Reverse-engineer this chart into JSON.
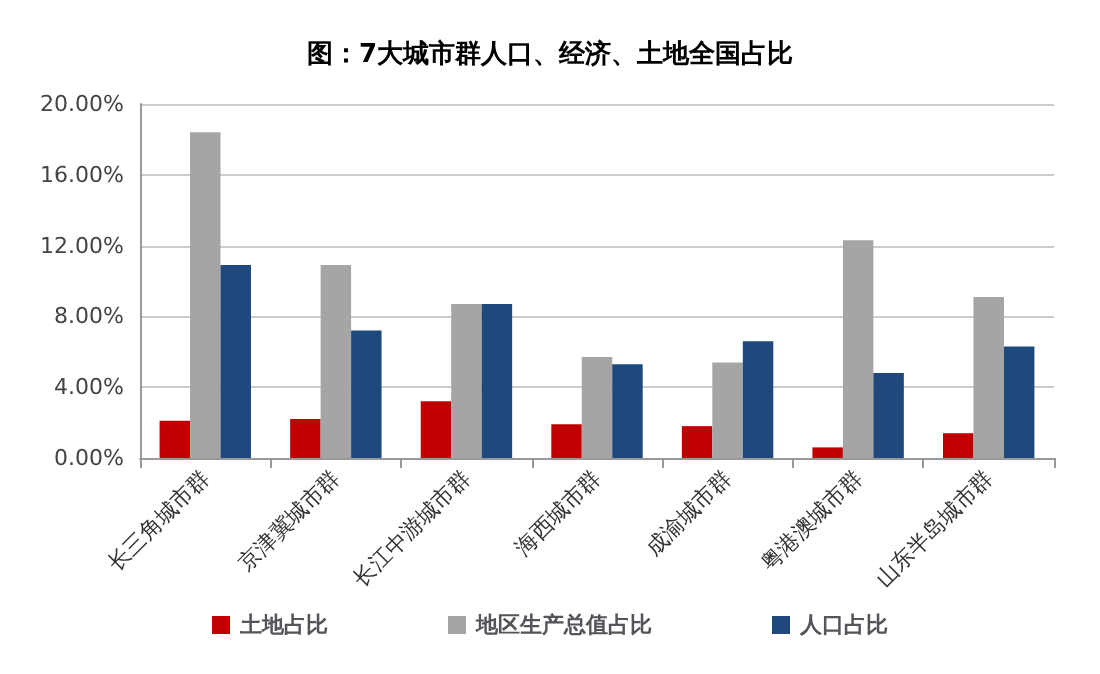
{
  "chart_data": {
    "type": "bar",
    "title": "图：7大城市群人口、经济、土地全国占比",
    "categories": [
      "长三角城市群",
      "京津冀城市群",
      "长江中游城市群",
      "海西城市群",
      "成渝城市群",
      "粤港澳城市群",
      "山东半岛城市群"
    ],
    "series": [
      {
        "name": "土地占比",
        "color": "#c00000",
        "values": [
          2.1,
          2.2,
          3.2,
          1.9,
          1.8,
          0.6,
          1.4
        ]
      },
      {
        "name": "地区生产总值占比",
        "color": "#a5a5a5",
        "values": [
          18.4,
          10.9,
          8.7,
          5.7,
          5.4,
          12.3,
          9.1
        ]
      },
      {
        "name": "人口占比",
        "color": "#1f497d",
        "values": [
          10.9,
          7.2,
          8.7,
          5.3,
          6.6,
          4.8,
          6.3
        ]
      }
    ],
    "ylim": [
      0,
      20
    ],
    "yticks": [
      {
        "value": 0,
        "label": "0.00%"
      },
      {
        "value": 4,
        "label": "4.00%"
      },
      {
        "value": 8,
        "label": "8.00%"
      },
      {
        "value": 12,
        "label": "12.00%"
      },
      {
        "value": 16,
        "label": "16.00%"
      },
      {
        "value": 20,
        "label": "20.00%"
      }
    ],
    "grid": "y",
    "legend": "bottom"
  }
}
